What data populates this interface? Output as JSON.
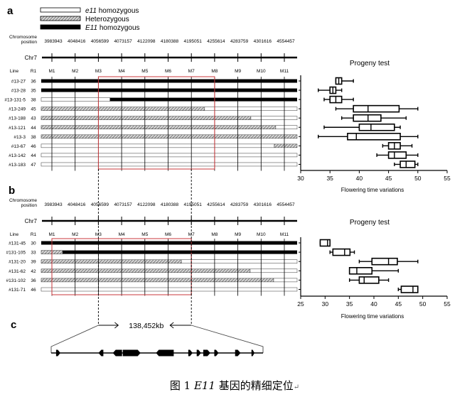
{
  "legend": [
    {
      "genotype": "e11",
      "label_italic": "e11",
      "label": " homozygous"
    },
    {
      "genotype": "het",
      "label_italic": "",
      "label": "Heterozygous"
    },
    {
      "genotype": "E11",
      "label_italic": "E11",
      "label": " homozygous"
    }
  ],
  "colors": {
    "E11": "#000000",
    "e11": "#ffffff",
    "het": "#9a9a9a",
    "region_box": "#c8373b"
  },
  "panels": [
    {
      "label": "a",
      "position_header": [
        "Chromosome",
        "position"
      ],
      "positions": [
        "3983943",
        "4048416",
        "4056599",
        "4073157",
        "4122098",
        "4180388",
        "4195051",
        "4255614",
        "4283759",
        "4301616",
        "4554457"
      ],
      "chromosome": "Chr7",
      "markers": [
        "M1",
        "M2",
        "M3",
        "M4",
        "M5",
        "M6",
        "M7",
        "M8",
        "M9",
        "M10",
        "M11"
      ],
      "line_header": "Line",
      "r1_header": "R1",
      "candidate_region_markers": [
        3,
        8
      ],
      "rows": [
        {
          "line": "#13-27",
          "r1": "36",
          "segments": [
            {
              "g": "E11",
              "to": 11.55
            }
          ]
        },
        {
          "line": "#13-28",
          "r1": "35",
          "segments": [
            {
              "g": "E11",
              "to": 11.55
            }
          ]
        },
        {
          "line": "#13-131-5",
          "r1": "38",
          "segments": [
            {
              "g": "e11",
              "to": 3.5
            },
            {
              "g": "E11",
              "to": 11.55
            }
          ]
        },
        {
          "line": "#13-249",
          "r1": "45",
          "segments": [
            {
              "g": "het",
              "to": 7.57
            },
            {
              "g": "e11",
              "to": 11.55
            }
          ]
        },
        {
          "line": "#13-188",
          "r1": "43",
          "segments": [
            {
              "g": "het",
              "to": 9.56
            },
            {
              "g": "e11",
              "to": 11.55
            }
          ]
        },
        {
          "line": "#13-121",
          "r1": "44",
          "segments": [
            {
              "g": "het",
              "to": 10.63
            },
            {
              "g": "e11",
              "to": 11.55
            }
          ]
        },
        {
          "line": "#13-3",
          "r1": "38",
          "segments": [
            {
              "g": "het",
              "to": 11.55
            }
          ]
        },
        {
          "line": "#13-67",
          "r1": "46",
          "segments": [
            {
              "g": "e11",
              "to": 10.57
            },
            {
              "g": "het",
              "to": 11.55
            }
          ]
        },
        {
          "line": "#13-142",
          "r1": "44",
          "segments": [
            {
              "g": "e11",
              "to": 11.55
            }
          ]
        },
        {
          "line": "#13-183",
          "r1": "47",
          "segments": [
            {
              "g": "e11",
              "to": 11.55
            }
          ]
        }
      ],
      "progeny": {
        "title": "Progeny test",
        "xlabel": "Flowering time variations",
        "xlim": [
          30,
          55
        ],
        "ticks": [
          "30",
          "35",
          "40",
          "45",
          "50",
          "55"
        ],
        "boxes": [
          {
            "min": 36,
            "q1": 36,
            "median": 36.5,
            "q3": 37,
            "max": 39
          },
          {
            "min": 33,
            "q1": 35,
            "median": 35.5,
            "q3": 36,
            "max": 37
          },
          {
            "min": 34,
            "q1": 35,
            "median": 36,
            "q3": 37,
            "max": 39
          },
          {
            "min": 36,
            "q1": 39,
            "median": 41.5,
            "q3": 46.8,
            "max": 50
          },
          {
            "min": 37,
            "q1": 39,
            "median": 41.5,
            "q3": 43.7,
            "max": 48
          },
          {
            "min": 34,
            "q1": 40,
            "median": 42,
            "q3": 46,
            "max": 47
          },
          {
            "min": 33,
            "q1": 38,
            "median": 39.5,
            "q3": 47,
            "max": 50
          },
          {
            "min": 44,
            "q1": 45,
            "median": 46,
            "q3": 47,
            "max": 49
          },
          {
            "min": 43,
            "q1": 45,
            "median": 46,
            "q3": 48,
            "max": 50
          },
          {
            "min": 46,
            "q1": 47,
            "median": 48,
            "q3": 49.5,
            "max": 50
          }
        ]
      }
    },
    {
      "label": "b",
      "position_header": [
        "Chromosome",
        "position"
      ],
      "positions": [
        "3983943",
        "4048416",
        "4056599",
        "4073157",
        "4122098",
        "4180388",
        "4195051",
        "4255614",
        "4283759",
        "4301616",
        "4554457"
      ],
      "chromosome": "Chr7",
      "markers": [
        "M1",
        "M2",
        "M3",
        "M4",
        "M5",
        "M6",
        "M7",
        "M8",
        "M9",
        "M10",
        "M11"
      ],
      "line_header": "Line",
      "r1_header": "R1",
      "candidate_region_markers": [
        1,
        7
      ],
      "rows": [
        {
          "line": "#131-45",
          "r1": "30",
          "segments": [
            {
              "g": "E11",
              "to": 11.55
            }
          ]
        },
        {
          "line": "#131-105",
          "r1": "33",
          "segments": [
            {
              "g": "het",
              "to": 1.46
            },
            {
              "g": "E11",
              "to": 11.55
            }
          ]
        },
        {
          "line": "#131-20",
          "r1": "39",
          "segments": [
            {
              "g": "het",
              "to": 6.57
            },
            {
              "g": "e11",
              "to": 11.55
            }
          ]
        },
        {
          "line": "#131-62",
          "r1": "42",
          "segments": [
            {
              "g": "het",
              "to": 9.53
            },
            {
              "g": "e11",
              "to": 11.55
            }
          ]
        },
        {
          "line": "#131-102",
          "r1": "36",
          "segments": [
            {
              "g": "het",
              "to": 10.54
            },
            {
              "g": "e11",
              "to": 11.55
            }
          ]
        },
        {
          "line": "#131-71",
          "r1": "46",
          "segments": [
            {
              "g": "e11",
              "to": 11.55
            }
          ]
        }
      ],
      "progeny": {
        "title": "Progeny test",
        "xlabel": "Flowering time variations",
        "xlim": [
          25,
          55
        ],
        "ticks": [
          "25",
          "30",
          "35",
          "40",
          "45",
          "50",
          "55"
        ],
        "boxes": [
          {
            "min": 29,
            "q1": 29,
            "median": 30.5,
            "q3": 31,
            "max": 31
          },
          {
            "min": 31,
            "q1": 31.6,
            "median": 34,
            "q3": 35.1,
            "max": 36
          },
          {
            "min": 37,
            "q1": 39.6,
            "median": 43,
            "q3": 44.8,
            "max": 49
          },
          {
            "min": 35,
            "q1": 35,
            "median": 36.5,
            "q3": 39.6,
            "max": 45
          },
          {
            "min": 35,
            "q1": 37,
            "median": 38,
            "q3": 41,
            "max": 43
          },
          {
            "min": 45,
            "q1": 45.6,
            "median": 48,
            "q3": 49,
            "max": 49
          }
        ]
      }
    }
  ],
  "panel_c": {
    "label": "c",
    "interval_markers": [
      3,
      7
    ],
    "interval_label": "138,452kb",
    "region_kb": 138.452,
    "genes": [
      {
        "center_kb": 4.6,
        "length_kb": 2.8,
        "dir": "right"
      },
      {
        "center_kb": 32.5,
        "length_kb": 3.2,
        "dir": "left"
      },
      {
        "center_kb": 43.3,
        "length_kb": 6.0,
        "dir": "left"
      },
      {
        "center_kb": 52.6,
        "length_kb": 11.6,
        "dir": "right"
      },
      {
        "center_kb": 74.3,
        "length_kb": 11.6,
        "dir": "left"
      },
      {
        "center_kb": 91.0,
        "length_kb": 2.8,
        "dir": "right"
      },
      {
        "center_kb": 96.5,
        "length_kb": 2.8,
        "dir": "right"
      },
      {
        "center_kb": 101.7,
        "length_kb": 4.6,
        "dir": "right"
      },
      {
        "center_kb": 108.0,
        "length_kb": 2.8,
        "dir": "right"
      },
      {
        "center_kb": 122.0,
        "length_kb": 3.6,
        "dir": "right"
      },
      {
        "center_kb": 131.9,
        "length_kb": 2.0,
        "dir": "right"
      }
    ]
  },
  "caption": {
    "prefix": "图 1 ",
    "gene": "E11",
    "suffix": " 基因的精细定位",
    "mark": "↵"
  }
}
